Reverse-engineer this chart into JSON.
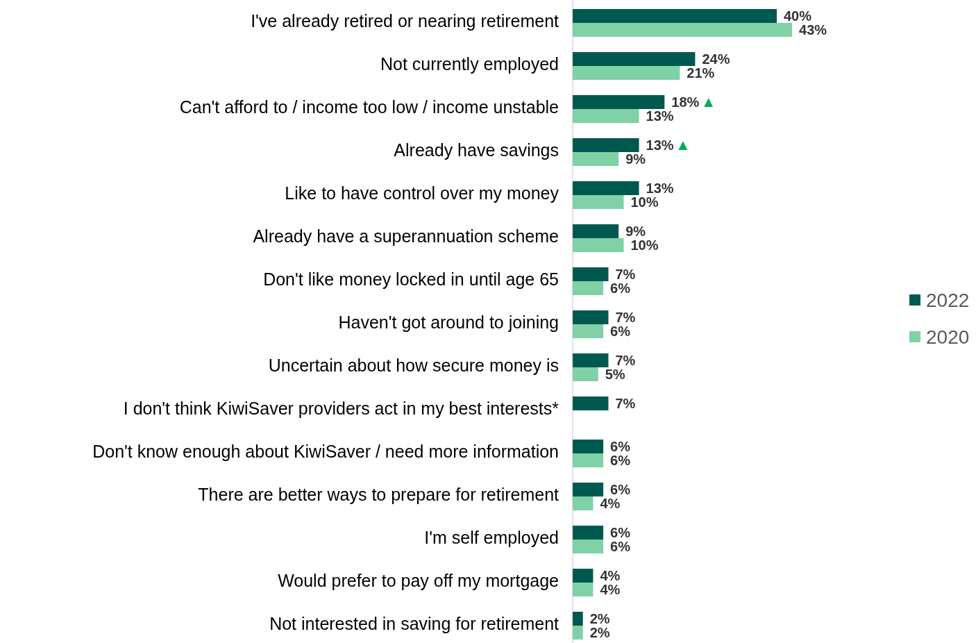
{
  "chart_data": {
    "type": "bar",
    "orientation": "horizontal",
    "categories": [
      "I've already retired or nearing retirement",
      "Not currently employed",
      "Can't afford to / income too low / income unstable",
      "Already have savings",
      "Like to have control over my money",
      "Already have a superannuation scheme",
      "Don't like money locked in until age 65",
      "Haven't got around to joining",
      "Uncertain about how secure money is",
      "I don't think KiwiSaver providers act in my best interests*",
      "Don't know enough about KiwiSaver / need more information",
      "There are better ways to prepare for retirement",
      "I'm self employed",
      "Would prefer to pay off my mortgage",
      "Not interested in saving for retirement"
    ],
    "series": [
      {
        "name": "2022",
        "color": "#00594f",
        "values": [
          40,
          24,
          18,
          13,
          13,
          9,
          7,
          7,
          7,
          7,
          6,
          6,
          6,
          4,
          2
        ],
        "value_labels": [
          "40%",
          "24%",
          "18%",
          "13%",
          "13%",
          "9%",
          "7%",
          "7%",
          "7%",
          "7%",
          "6%",
          "6%",
          "6%",
          "4%",
          "2%"
        ]
      },
      {
        "name": "2020",
        "color": "#80d1a6",
        "values": [
          43,
          21,
          13,
          9,
          10,
          10,
          6,
          6,
          5,
          null,
          6,
          4,
          6,
          4,
          2
        ],
        "value_labels": [
          "43%",
          "21%",
          "13%",
          "9%",
          "10%",
          "10%",
          "6%",
          "6%",
          "5%",
          null,
          "6%",
          "4%",
          "6%",
          "4%",
          "2%"
        ]
      }
    ],
    "legend": "right",
    "annotations": [
      {
        "text": "▲",
        "x": 18,
        "y": "Can't afford to / income too low / income unstable"
      },
      {
        "text": "▲",
        "x": 13,
        "y": "Already have savings"
      }
    ]
  }
}
